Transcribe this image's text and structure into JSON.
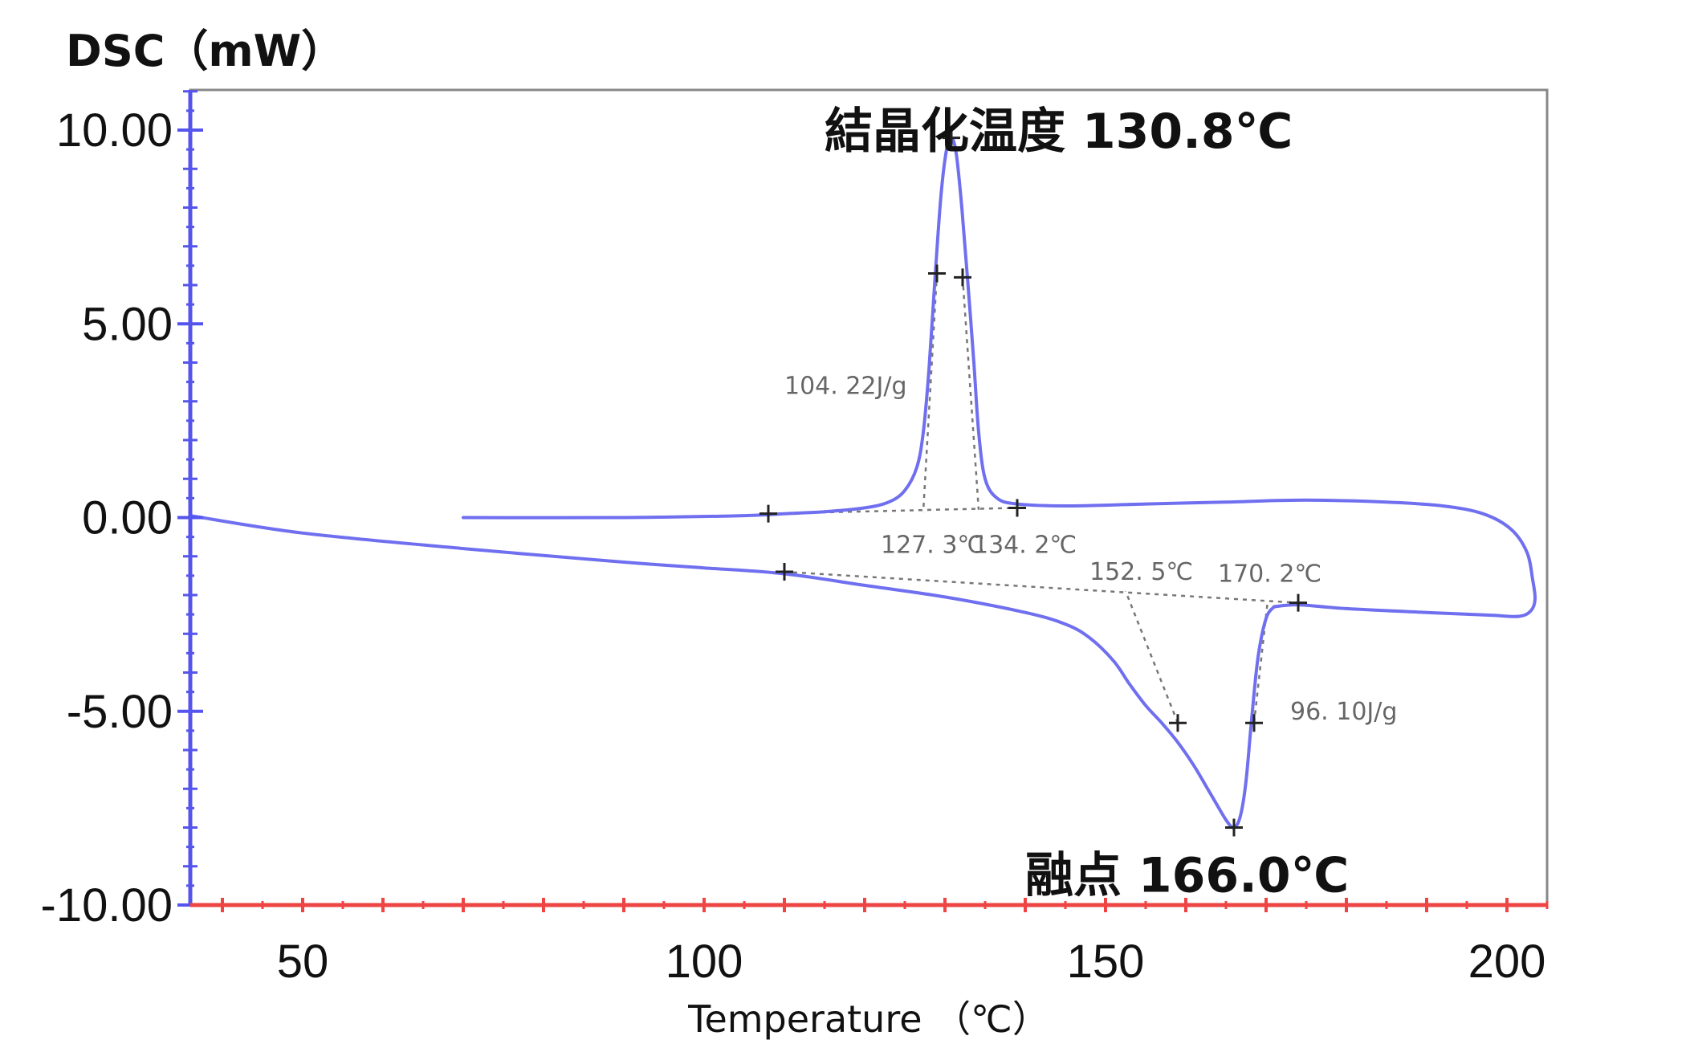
{
  "chart_data": {
    "type": "line",
    "title": "",
    "ylabel": "DSC（mW）",
    "xlabel": "Temperature （℃）",
    "xlim": [
      36,
      205
    ],
    "ylim": [
      -10,
      11
    ],
    "x_ticks": [
      50,
      100,
      150,
      200
    ],
    "x_tick_labels": [
      "50",
      "100",
      "150",
      "200"
    ],
    "y_ticks": [
      10,
      5,
      0,
      -5,
      -10
    ],
    "y_tick_labels": [
      "10.00",
      "5.00",
      "0.00",
      "-5.00",
      "-10.00"
    ],
    "grid": false,
    "colors": {
      "curve": "#6f6ff0",
      "y_axis": "#5555ee",
      "x_axis": "#ee4444",
      "frame": "#888888",
      "baseline": "#777777",
      "marker": "#222222"
    },
    "series": [
      {
        "role": "cooling",
        "points": [
          [
            70,
            0.0
          ],
          [
            90,
            0.0
          ],
          [
            105,
            0.05
          ],
          [
            110,
            0.1
          ],
          [
            115,
            0.15
          ],
          [
            120,
            0.25
          ],
          [
            123,
            0.4
          ],
          [
            125,
            0.7
          ],
          [
            126.5,
            1.3
          ],
          [
            127.3,
            2.2
          ],
          [
            128,
            3.8
          ],
          [
            128.8,
            6.3
          ],
          [
            129.5,
            8.3
          ],
          [
            130.2,
            9.5
          ],
          [
            130.8,
            9.8
          ],
          [
            131.4,
            9.4
          ],
          [
            132.1,
            8.0
          ],
          [
            132.8,
            6.2
          ],
          [
            133.6,
            4.0
          ],
          [
            134.2,
            2.2
          ],
          [
            135,
            1.0
          ],
          [
            136.5,
            0.5
          ],
          [
            139,
            0.35
          ],
          [
            145,
            0.3
          ],
          [
            155,
            0.35
          ],
          [
            165,
            0.4
          ],
          [
            175,
            0.45
          ],
          [
            185,
            0.4
          ],
          [
            192,
            0.3
          ],
          [
            197,
            0.1
          ],
          [
            200.5,
            -0.3
          ],
          [
            202.5,
            -0.9
          ],
          [
            203.2,
            -1.6
          ],
          [
            203.5,
            -2.1
          ],
          [
            203,
            -2.4
          ],
          [
            201.5,
            -2.55
          ],
          [
            198,
            -2.52
          ],
          [
            190,
            -2.45
          ],
          [
            180,
            -2.35
          ],
          [
            174,
            -2.25
          ],
          [
            171,
            -2.3
          ]
        ]
      },
      {
        "role": "heating",
        "points": [
          [
            36,
            0.05
          ],
          [
            50,
            -0.4
          ],
          [
            70,
            -0.8
          ],
          [
            90,
            -1.15
          ],
          [
            100,
            -1.3
          ],
          [
            110,
            -1.45
          ],
          [
            120,
            -1.75
          ],
          [
            130,
            -2.05
          ],
          [
            140,
            -2.45
          ],
          [
            145,
            -2.75
          ],
          [
            148,
            -3.1
          ],
          [
            151,
            -3.7
          ],
          [
            153,
            -4.3
          ],
          [
            155,
            -4.85
          ],
          [
            157,
            -5.3
          ],
          [
            159,
            -5.8
          ],
          [
            161,
            -6.4
          ],
          [
            163,
            -7.1
          ],
          [
            165,
            -7.8
          ],
          [
            166,
            -8.0
          ],
          [
            166.8,
            -7.7
          ],
          [
            167.5,
            -6.8
          ],
          [
            168.2,
            -5.2
          ],
          [
            169,
            -3.6
          ],
          [
            170,
            -2.6
          ],
          [
            171,
            -2.3
          ]
        ]
      }
    ],
    "baselines": [
      [
        [
          108,
          0.1
        ],
        [
          139,
          0.25
        ]
      ],
      [
        [
          110,
          -1.4
        ],
        [
          174,
          -2.2
        ]
      ]
    ],
    "markers": [
      [
        108,
        0.1
      ],
      [
        139,
        0.25
      ],
      [
        110,
        -1.4
      ],
      [
        174,
        -2.2
      ],
      [
        129,
        6.3
      ],
      [
        132.2,
        6.2
      ],
      [
        130.8,
        9.8
      ],
      [
        159,
        -5.3
      ],
      [
        168.5,
        -5.3
      ],
      [
        166,
        -8.0
      ]
    ],
    "extrapolation_lines": [
      [
        [
          129,
          6.3
        ],
        [
          127.3,
          0.15
        ]
      ],
      [
        [
          132.2,
          6.2
        ],
        [
          134.2,
          0.2
        ]
      ],
      [
        [
          159,
          -5.3
        ],
        [
          152.5,
          -1.9
        ]
      ],
      [
        [
          168.5,
          -5.3
        ],
        [
          170.2,
          -2.15
        ]
      ]
    ],
    "annotations": [
      {
        "text": "結晶化温度 130.8℃",
        "x": 115,
        "y": 10.0,
        "style": "large"
      },
      {
        "text": "融点 166.0℃",
        "x": 140,
        "y": -9.2,
        "style": "large"
      },
      {
        "text": "104. 22J/g",
        "x": 110,
        "y": 3.4,
        "style": "small"
      },
      {
        "text": "127. 3℃",
        "x": 122,
        "y": -0.7,
        "style": "small"
      },
      {
        "text": "134. 2℃",
        "x": 133.5,
        "y": -0.7,
        "style": "small"
      },
      {
        "text": "152. 5℃",
        "x": 148,
        "y": -1.4,
        "style": "small"
      },
      {
        "text": "170. 2℃",
        "x": 164,
        "y": -1.45,
        "style": "small"
      },
      {
        "text": "96. 10J/g",
        "x": 173,
        "y": -5.0,
        "style": "small"
      }
    ]
  }
}
